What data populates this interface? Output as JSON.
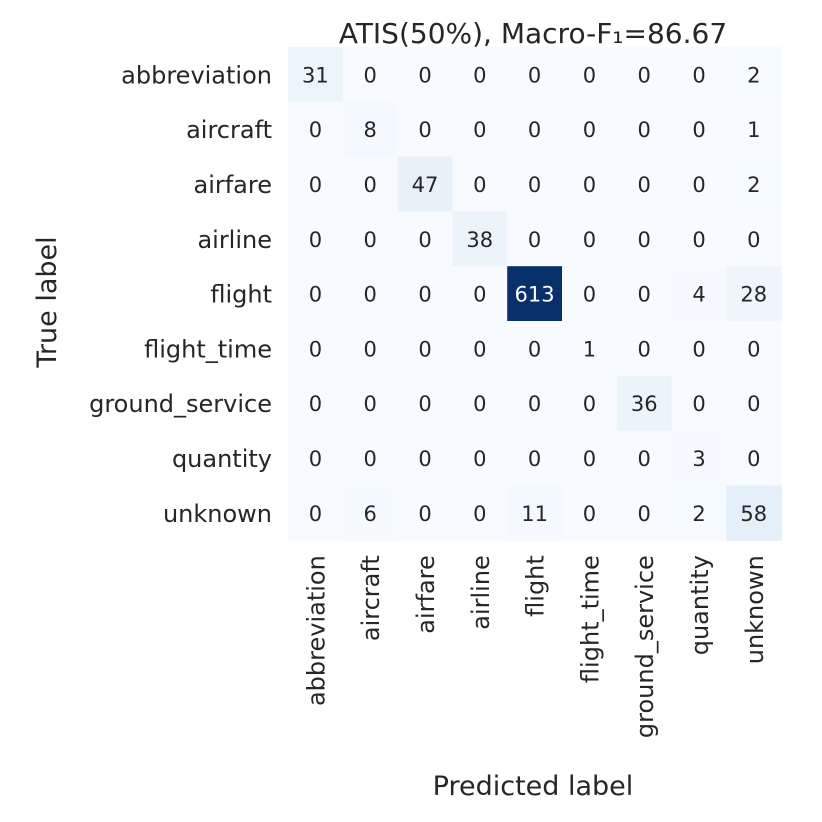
{
  "chart_data": {
    "type": "heatmap",
    "title": "ATIS(50%), Macro-F₁=86.67",
    "xlabel": "Predicted label",
    "ylabel": "True label",
    "x_labels": [
      "abbreviation",
      "aircraft",
      "airfare",
      "airline",
      "flight",
      "flight_time",
      "ground_service",
      "quantity",
      "unknown"
    ],
    "y_labels": [
      "abbreviation",
      "aircraft",
      "airfare",
      "airline",
      "flight",
      "flight_time",
      "ground_service",
      "quantity",
      "unknown"
    ],
    "matrix": [
      [
        31,
        0,
        0,
        0,
        0,
        0,
        0,
        0,
        2
      ],
      [
        0,
        8,
        0,
        0,
        0,
        0,
        0,
        0,
        1
      ],
      [
        0,
        0,
        47,
        0,
        0,
        0,
        0,
        0,
        2
      ],
      [
        0,
        0,
        0,
        38,
        0,
        0,
        0,
        0,
        0
      ],
      [
        0,
        0,
        0,
        0,
        613,
        0,
        0,
        4,
        28
      ],
      [
        0,
        0,
        0,
        0,
        0,
        1,
        0,
        0,
        0
      ],
      [
        0,
        0,
        0,
        0,
        0,
        0,
        36,
        0,
        0
      ],
      [
        0,
        0,
        0,
        0,
        0,
        0,
        0,
        3,
        0
      ],
      [
        0,
        6,
        0,
        0,
        11,
        0,
        0,
        2,
        58
      ]
    ],
    "colormap": "Blues",
    "colorbar": false,
    "vmin": 0,
    "vmax": 613
  }
}
